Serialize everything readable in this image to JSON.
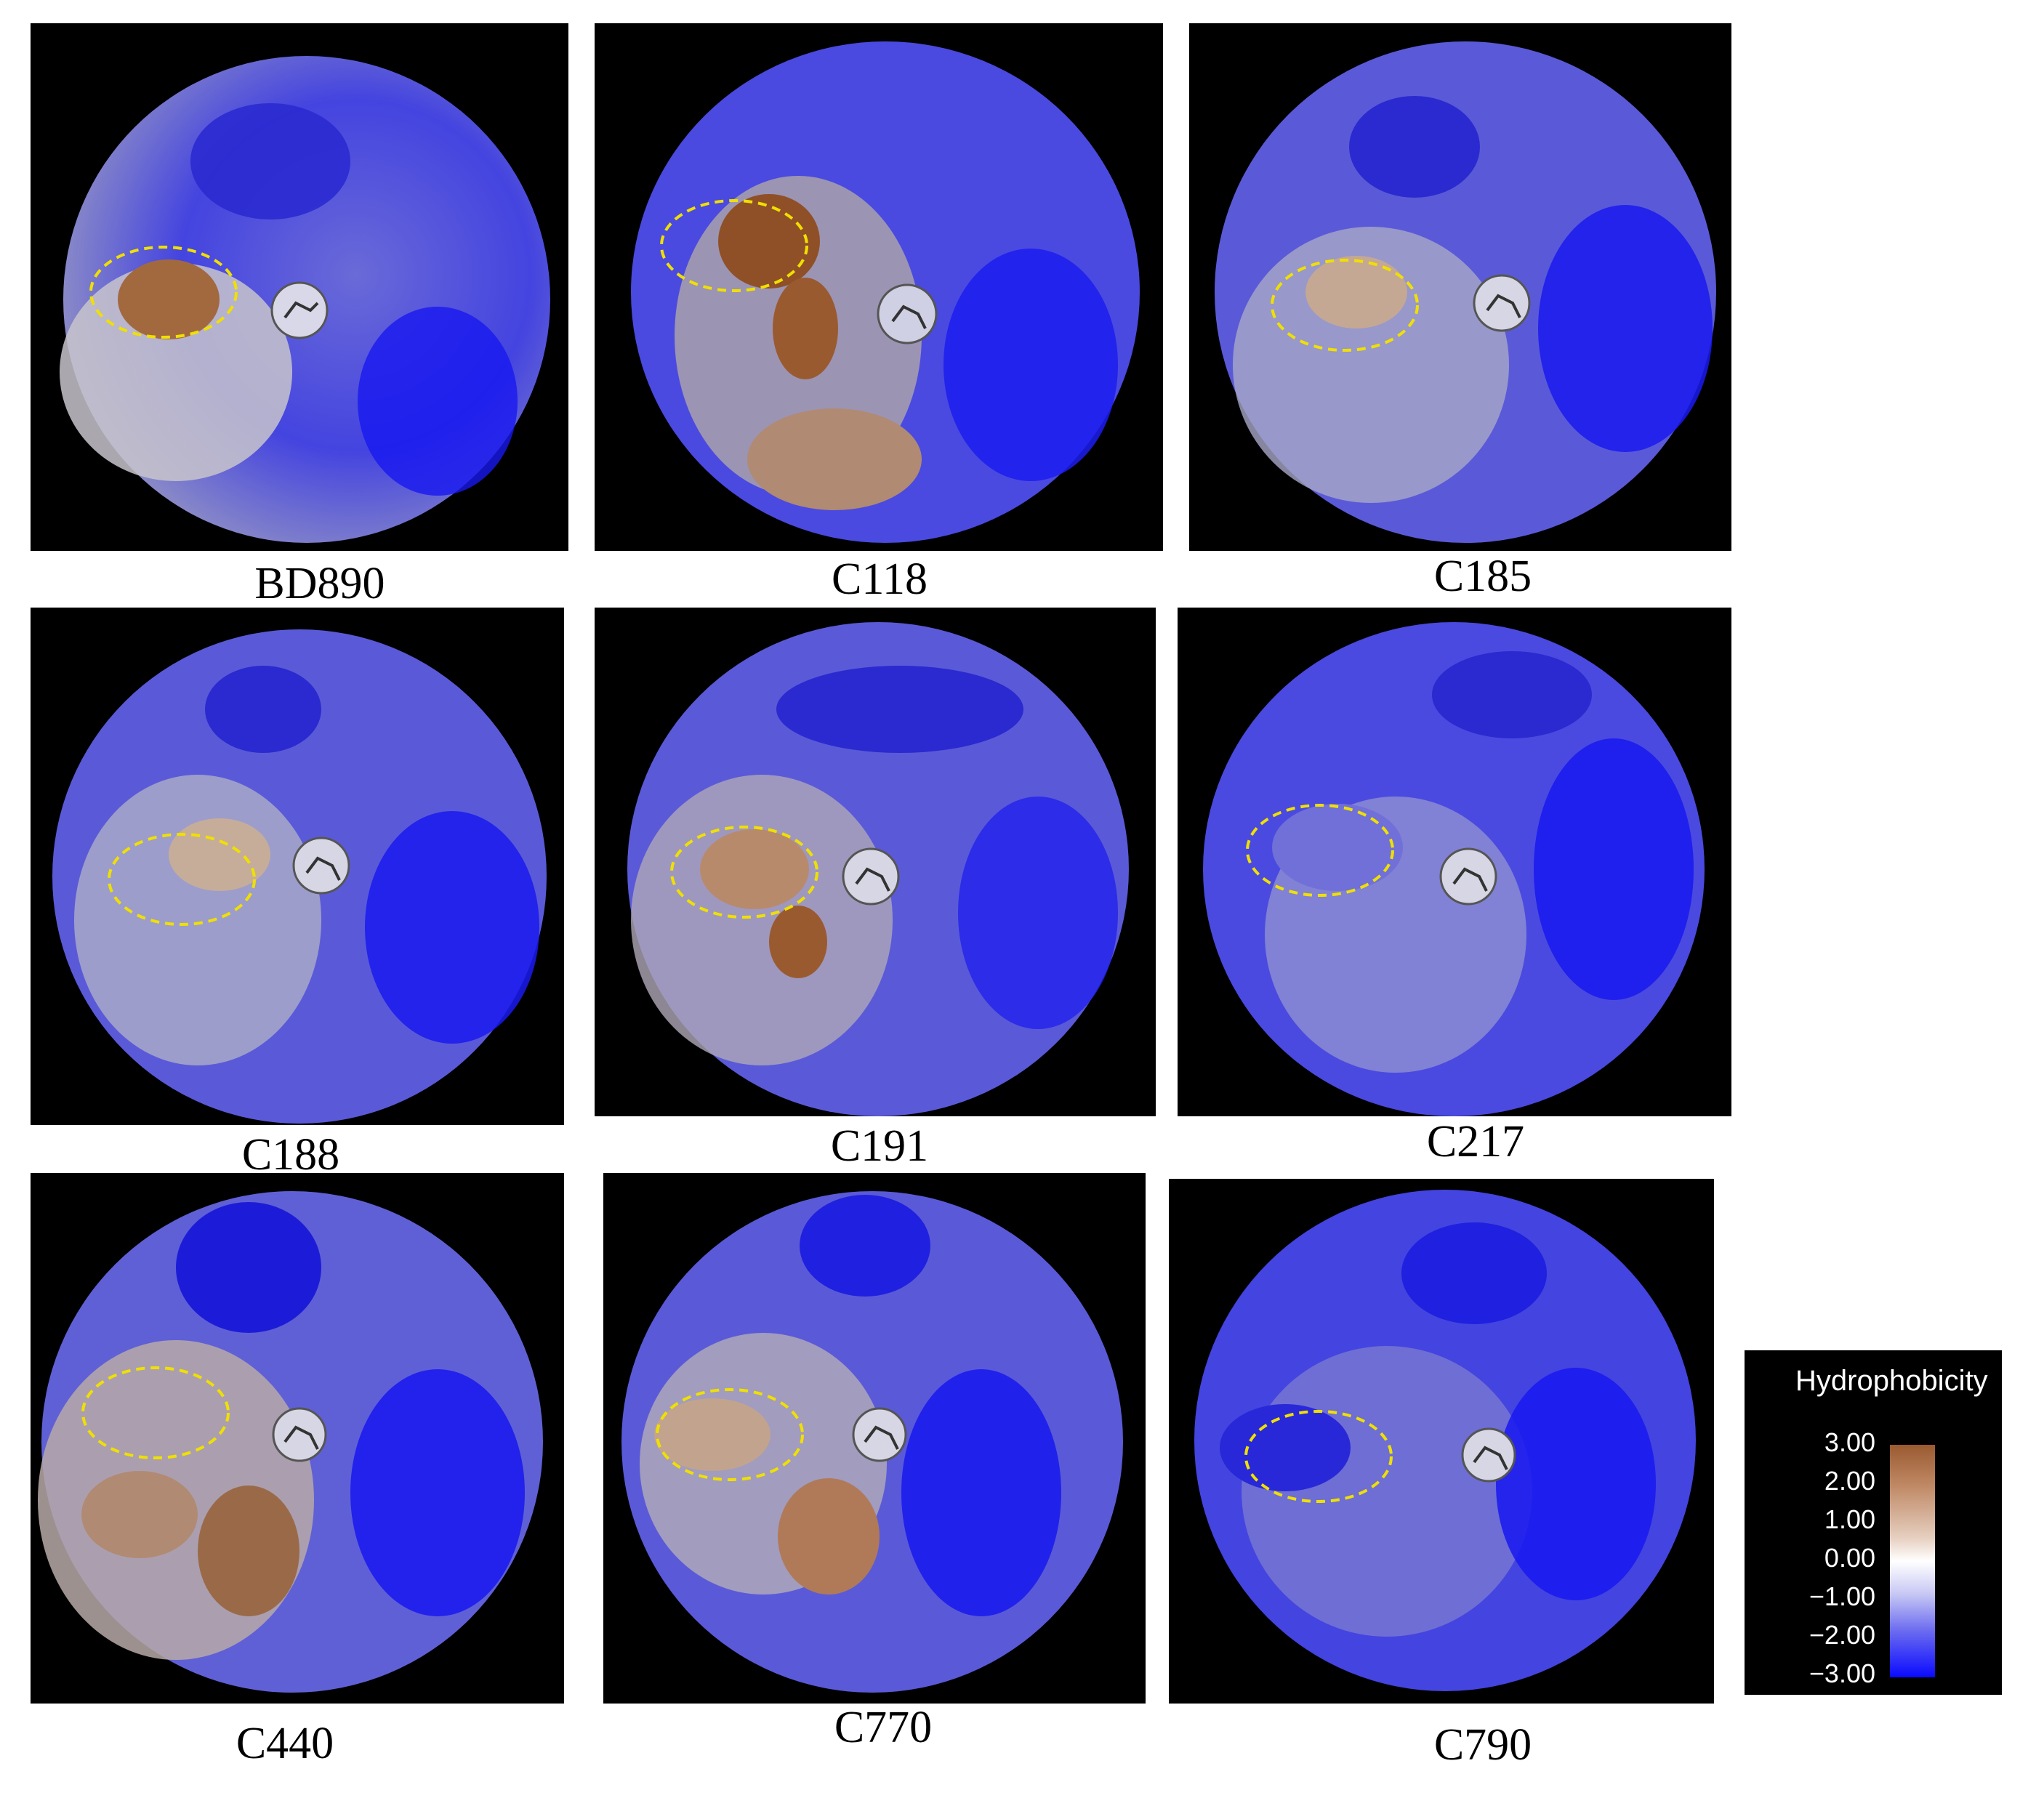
{
  "panels": [
    {
      "label": "BD890",
      "warm": 0.9
    },
    {
      "label": "C118",
      "warm": 1.0
    },
    {
      "label": "C185",
      "warm": 0.4
    },
    {
      "label": "C188",
      "warm": 0.4
    },
    {
      "label": "C191",
      "warm": 0.8
    },
    {
      "label": "C217",
      "warm": 0.2
    },
    {
      "label": "C440",
      "warm": 0.7
    },
    {
      "label": "C770",
      "warm": 0.7
    },
    {
      "label": "C790",
      "warm": 0.1
    }
  ],
  "legend": {
    "title": "Hydrophobicity",
    "ticks": [
      "3.00",
      "2.00",
      "1.00",
      "0.00",
      "−1.00",
      "−2.00",
      "−3.00"
    ]
  },
  "colors": {
    "hydrophobic": "#9a5a30",
    "neutral": "#ffffff",
    "hydrophilic": "#0a0aff",
    "highlight_ellipse": "#f0e000",
    "background": "#000000"
  }
}
